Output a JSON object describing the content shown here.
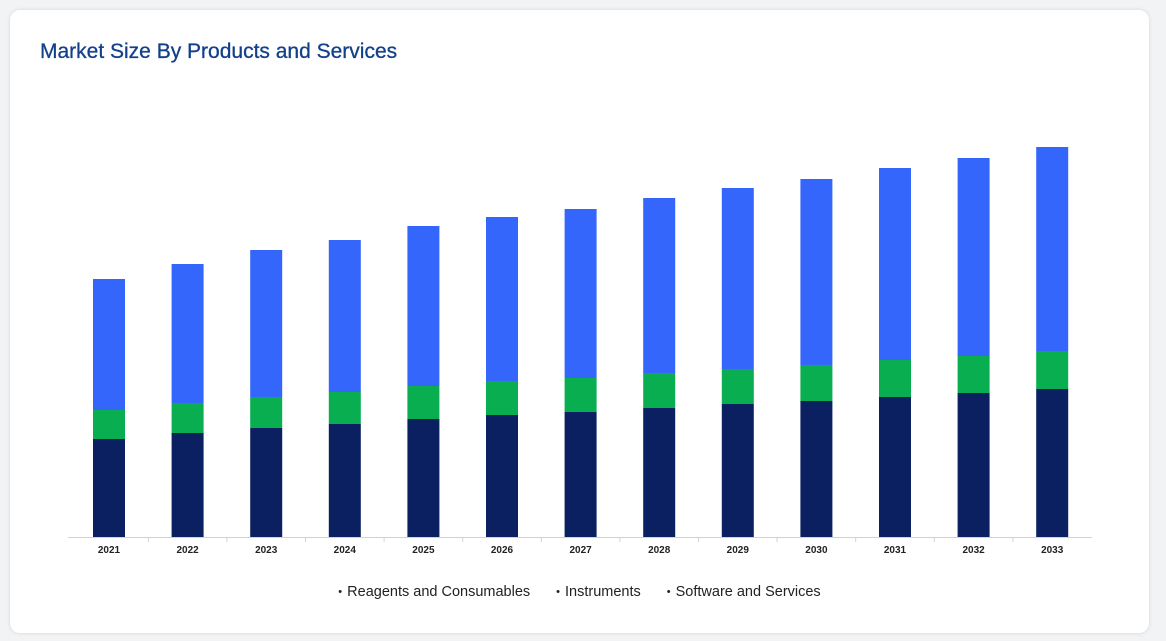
{
  "title": "Market Size By Products and Services",
  "chart_data": {
    "type": "bar",
    "stacked": true,
    "categories": [
      "2021",
      "2022",
      "2023",
      "2024",
      "2025",
      "2026",
      "2027",
      "2028",
      "2029",
      "2030",
      "2031",
      "2032",
      "2033"
    ],
    "series": [
      {
        "name": "Reagents and Consumables",
        "color": "#0b2060",
        "values": [
          98,
          104,
          109,
          113,
          118,
          122,
          125,
          129,
          133,
          136,
          140,
          144,
          148
        ]
      },
      {
        "name": "Instruments",
        "color": "#08ae50",
        "values": [
          29,
          30,
          31,
          32,
          33,
          34,
          34,
          35,
          35,
          36,
          37,
          37,
          38
        ]
      },
      {
        "name": "Software and Services",
        "color": "#3566fc",
        "values": [
          131,
          139,
          147,
          152,
          160,
          164,
          169,
          175,
          181,
          186,
          192,
          198,
          204
        ]
      }
    ],
    "ylim": [
      0,
      440
    ],
    "xlabel": "",
    "ylabel": "",
    "grid": false,
    "legend_position": "bottom"
  }
}
